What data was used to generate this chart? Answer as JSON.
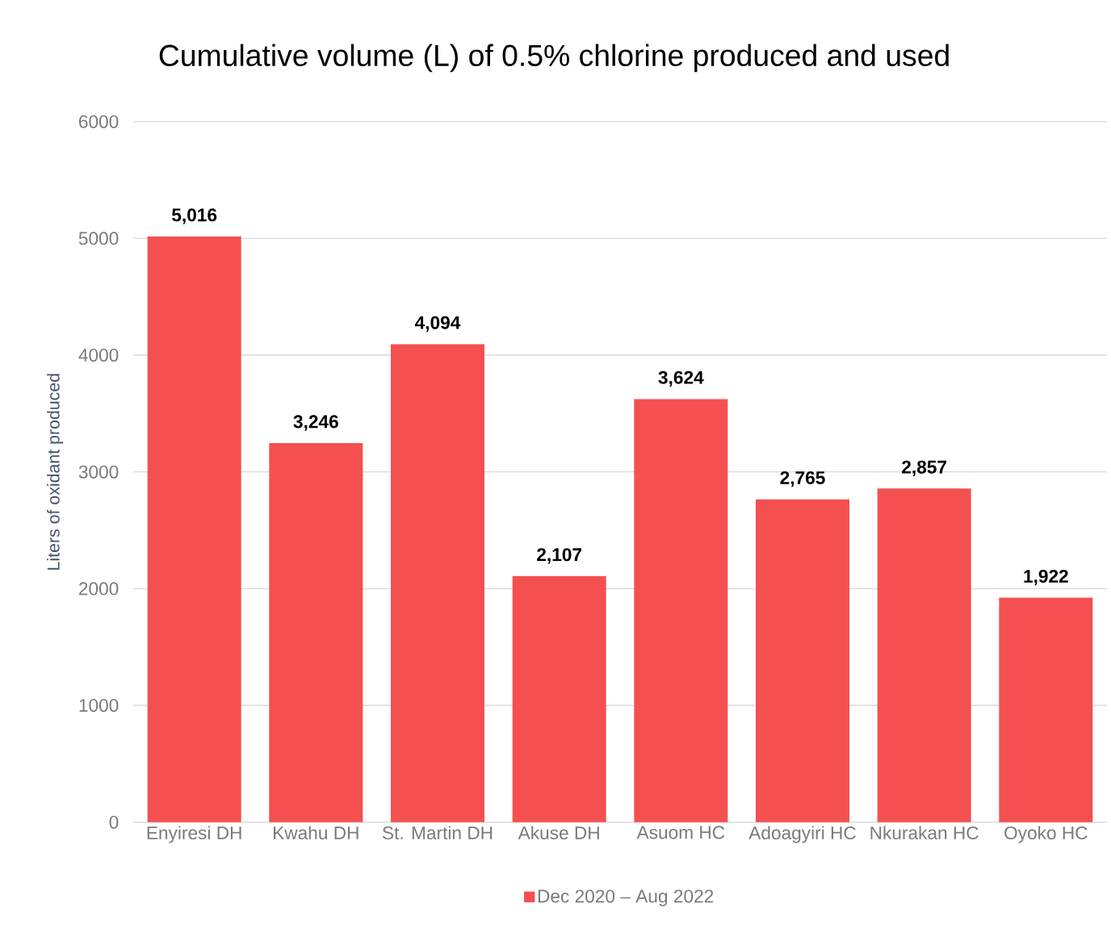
{
  "chart_data": {
    "type": "bar",
    "title": "Cumulative volume (L) of 0.5% chlorine produced and used",
    "ylabel": "Liters of oxidant produced",
    "categories": [
      "Enyiresi DH",
      "Kwahu DH",
      "St. Martin DH",
      "Akuse DH",
      "Asuom HC",
      "Adoagyiri HC",
      "Nkurakan HC",
      "Oyoko HC"
    ],
    "series": [
      {
        "name": "Dec 2020 – Aug 2022",
        "color": "#f45050",
        "values": [
          5016,
          3246,
          4094,
          2107,
          3624,
          2765,
          2857,
          1922
        ],
        "value_labels": [
          "5,016",
          "3,246",
          "4,094",
          "2,107",
          "3,624",
          "2,765",
          "2,857",
          "1,922"
        ]
      }
    ],
    "ylim": [
      0,
      6000
    ],
    "yticks": [
      0,
      1000,
      2000,
      3000,
      4000,
      5000,
      6000
    ],
    "grid": "y",
    "legend": "bottom"
  }
}
